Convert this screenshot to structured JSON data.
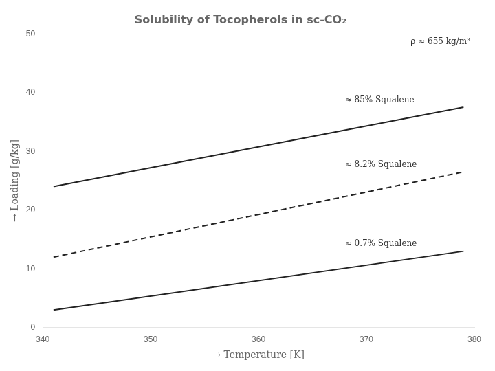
{
  "chart_data": {
    "type": "line",
    "title": "Solubility of Tocopherols in sc-CO₂",
    "x_label": "→ Temperature [K]",
    "y_label": "→ Loading [g/kg]",
    "x": [
      341,
      379
    ],
    "series": [
      {
        "values": [
          24.0,
          37.5
        ],
        "color": "#222222",
        "line_style": "solid"
      },
      {
        "values": [
          12.0,
          26.5
        ],
        "color": "#222222",
        "line_style": "dashed"
      },
      {
        "values": [
          3.0,
          13.0
        ],
        "color": "#222222",
        "line_style": "solid"
      }
    ],
    "annotations": [
      {
        "text": "≈ 85% Squalene",
        "x": 368,
        "y": 38.0
      },
      {
        "text": "≈ 8.2% Squalene",
        "x": 368,
        "y": 27.0
      },
      {
        "text": "≈ 0.7% Squalene",
        "x": 368,
        "y": 13.5
      },
      {
        "text": "ρ ≈ 655 kg/m³"
      }
    ],
    "xlim": [
      340,
      380
    ],
    "ylim": [
      0,
      50
    ],
    "xticks": [
      340,
      350,
      360,
      370,
      380
    ],
    "yticks": [
      0,
      10,
      20,
      30,
      40,
      50
    ],
    "grid": false
  }
}
